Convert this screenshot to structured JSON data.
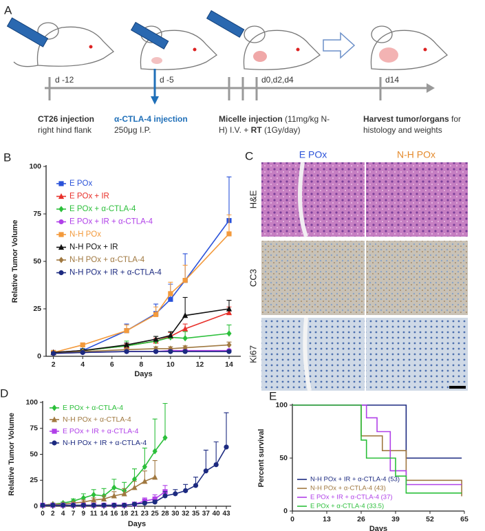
{
  "panel_a": {
    "label": "A",
    "timepoints": [
      "d -12",
      "d -5",
      "d0,d2,d4",
      "d14"
    ],
    "steps": [
      {
        "title": "CT26 injection",
        "detail": "right hind flank"
      },
      {
        "title": "α-CTLA-4  injection",
        "detail": "250μg I.P."
      },
      {
        "title": "Micelle injection",
        "detail": "(11mg/kg N-",
        "detail_b": "H) I.V. +",
        "title_b": "RT",
        "detail_c": "(1Gy/day)"
      },
      {
        "title": "Harvest tumor/organs",
        "detail": "for",
        "detail_b": "histology and weights"
      }
    ]
  },
  "panel_c": {
    "label": "C",
    "columns": [
      "E POx",
      "N-H POx"
    ],
    "rows": [
      "H&E",
      "CC3",
      "Ki67"
    ]
  },
  "chart_data": [
    {
      "type": "line",
      "panel_label": "B",
      "y_label": "Relative Tumor Volume",
      "x_label": "Days",
      "legend": "upper left",
      "x": [
        2,
        4,
        7,
        9,
        10,
        11,
        14
      ],
      "xlim": [
        1.5,
        14.8
      ],
      "xticks": [
        2,
        4,
        6,
        8,
        10,
        12,
        14
      ],
      "ylim": [
        0,
        100
      ],
      "yticks": [
        0,
        25,
        50,
        75,
        100
      ],
      "series": [
        {
          "name": "E POx",
          "color": "#2a52d9",
          "marker": "square",
          "values": [
            2,
            3,
            13.5,
            22.5,
            30,
            40,
            71.5
          ],
          "errors": [
            0.5,
            1,
            3.5,
            5,
            8,
            14,
            23
          ]
        },
        {
          "name": "E POx + IR",
          "color": "#e8302a",
          "marker": "triangle",
          "values": [
            2,
            3,
            5.5,
            8,
            10.5,
            14.5,
            23
          ],
          "errors": [
            0.3,
            0.5,
            1,
            1.5,
            2,
            2.5,
            3
          ]
        },
        {
          "name": "E POx + α-CTLA-4",
          "color": "#2bbf3a",
          "marker": "diamond",
          "values": [
            1.5,
            3,
            5.5,
            8,
            10,
            9.5,
            12
          ],
          "errors": [
            0.3,
            0.5,
            2.5,
            2.5,
            3,
            3.5,
            4.5
          ]
        },
        {
          "name": "E POx + IR + α-CTLA-4",
          "color": "#b040e8",
          "marker": "circle",
          "values": [
            1.5,
            2,
            2.5,
            2.5,
            3,
            3,
            3
          ],
          "errors": [
            0.2,
            0.3,
            0.5,
            0.5,
            0.5,
            0.5,
            0.5
          ]
        },
        {
          "name": "N-H POx",
          "color": "#f39a3c",
          "marker": "square",
          "values": [
            2,
            6,
            13.5,
            22,
            33,
            40,
            64.5
          ],
          "errors": [
            0.5,
            1,
            3,
            4,
            6,
            8,
            10
          ]
        },
        {
          "name": "N-H POx + IR",
          "color": "#111111",
          "marker": "triangle",
          "values": [
            2,
            3,
            6,
            9,
            11,
            21.5,
            25
          ],
          "errors": [
            0.3,
            0.5,
            1,
            1.5,
            2,
            9.5,
            4.5
          ]
        },
        {
          "name": "N-H POx + α-CTLA-4",
          "color": "#a07840",
          "marker": "diamond",
          "values": [
            1.5,
            2.5,
            3.5,
            4,
            4,
            4.5,
            6
          ],
          "errors": [
            0.2,
            0.4,
            0.5,
            1,
            1,
            1,
            1.5
          ]
        },
        {
          "name": "N-H POx + IR + α-CTLA-4",
          "color": "#1c2a80",
          "marker": "circle",
          "values": [
            1.5,
            2,
            2.5,
            2.5,
            2.5,
            2.5,
            2.5
          ],
          "errors": [
            0.2,
            0.3,
            0.5,
            0.5,
            0.5,
            0.5,
            0.5
          ]
        }
      ]
    },
    {
      "type": "line",
      "panel_label": "D",
      "y_label": "Relative Tumor Volume",
      "x_label": "Days",
      "legend": "upper left",
      "categories": [
        "0",
        "2",
        "4",
        "7",
        "9",
        "11",
        "14",
        "16",
        "18",
        "21",
        "23",
        "25",
        "28",
        "30",
        "32",
        "35",
        "37",
        "40",
        "43"
      ],
      "ylim": [
        0,
        100
      ],
      "yticks": [
        0,
        25,
        50,
        75,
        100
      ],
      "series": [
        {
          "name": "E POx + α-CTLA-4",
          "color": "#2bbf3a",
          "marker": "diamond",
          "values": [
            1,
            2,
            3,
            5,
            8,
            11,
            10,
            18,
            15,
            26,
            38,
            53,
            66,
            null,
            null,
            null,
            null,
            null,
            null
          ],
          "errors": [
            0.5,
            1,
            1,
            2,
            4,
            5,
            7,
            8,
            8,
            10,
            18,
            31,
            33,
            null,
            null,
            null,
            null,
            null,
            null
          ]
        },
        {
          "name": "N-H POx + α-CTLA-4",
          "color": "#a07840",
          "marker": "triangle",
          "values": [
            1,
            2,
            2,
            3,
            4,
            6,
            7,
            10,
            12,
            18,
            24,
            28,
            null,
            null,
            null,
            null,
            null,
            null,
            null
          ],
          "errors": [
            0.5,
            0.5,
            1,
            1,
            2,
            2,
            3,
            4,
            5,
            6,
            10,
            16,
            null,
            null,
            null,
            null,
            null,
            null,
            null
          ]
        },
        {
          "name": "E POx + IR + α-CTLA-4",
          "color": "#b040e8",
          "marker": "square",
          "values": [
            1,
            1,
            1,
            1,
            1,
            1,
            1,
            1,
            1,
            2,
            5,
            7,
            14,
            null,
            null,
            null,
            null,
            null,
            null
          ],
          "errors": [
            0.2,
            0.2,
            0.2,
            0.2,
            0.2,
            0.2,
            0.2,
            0.2,
            0.3,
            1,
            3,
            4,
            6,
            null,
            null,
            null,
            null,
            null,
            null
          ]
        },
        {
          "name": "N-H POx + IR + α-CTLA-4",
          "color": "#1c2a80",
          "marker": "circle",
          "values": [
            1,
            1,
            1,
            1,
            1,
            1,
            1,
            1,
            1,
            2,
            3,
            4,
            10,
            12,
            15,
            20,
            34,
            40,
            57
          ],
          "errors": [
            0.2,
            0.2,
            0.2,
            0.2,
            0.2,
            0.2,
            0.2,
            0.2,
            0.2,
            0.5,
            1,
            2,
            4,
            4,
            6,
            8,
            20,
            22,
            33
          ]
        }
      ]
    },
    {
      "type": "step",
      "panel_label": "E",
      "y_label": "Percent survival",
      "x_label": "Days",
      "legend": "lower left",
      "xlim": [
        0,
        65
      ],
      "xticks": [
        0,
        13,
        26,
        39,
        52,
        65
      ],
      "ylim": [
        0,
        100
      ],
      "yticks": [
        0,
        50,
        100
      ],
      "series": [
        {
          "name": "N-H POx + IR + α-CTLA-4 (53)",
          "color": "#1c2a80",
          "x": [
            0,
            43,
            64
          ],
          "values": [
            100,
            50,
            50
          ]
        },
        {
          "name": "N-H POx + α-CTLA-4 (43)",
          "color": "#a07840",
          "x": [
            0,
            26,
            34,
            43,
            64
          ],
          "values": [
            100,
            71,
            57,
            29,
            14
          ]
        },
        {
          "name": "E POx + IR + α-CTLA-4 (37)",
          "color": "#b040e8",
          "x": [
            0,
            28,
            32,
            37,
            43,
            64
          ],
          "values": [
            100,
            88,
            75,
            38,
            25,
            25
          ]
        },
        {
          "name": "E POx + α-CTLA-4 (33.5)",
          "color": "#2bbf3a",
          "x": [
            0,
            26,
            28,
            39,
            43,
            64
          ],
          "values": [
            100,
            67,
            50,
            33,
            17,
            17
          ]
        }
      ]
    }
  ]
}
